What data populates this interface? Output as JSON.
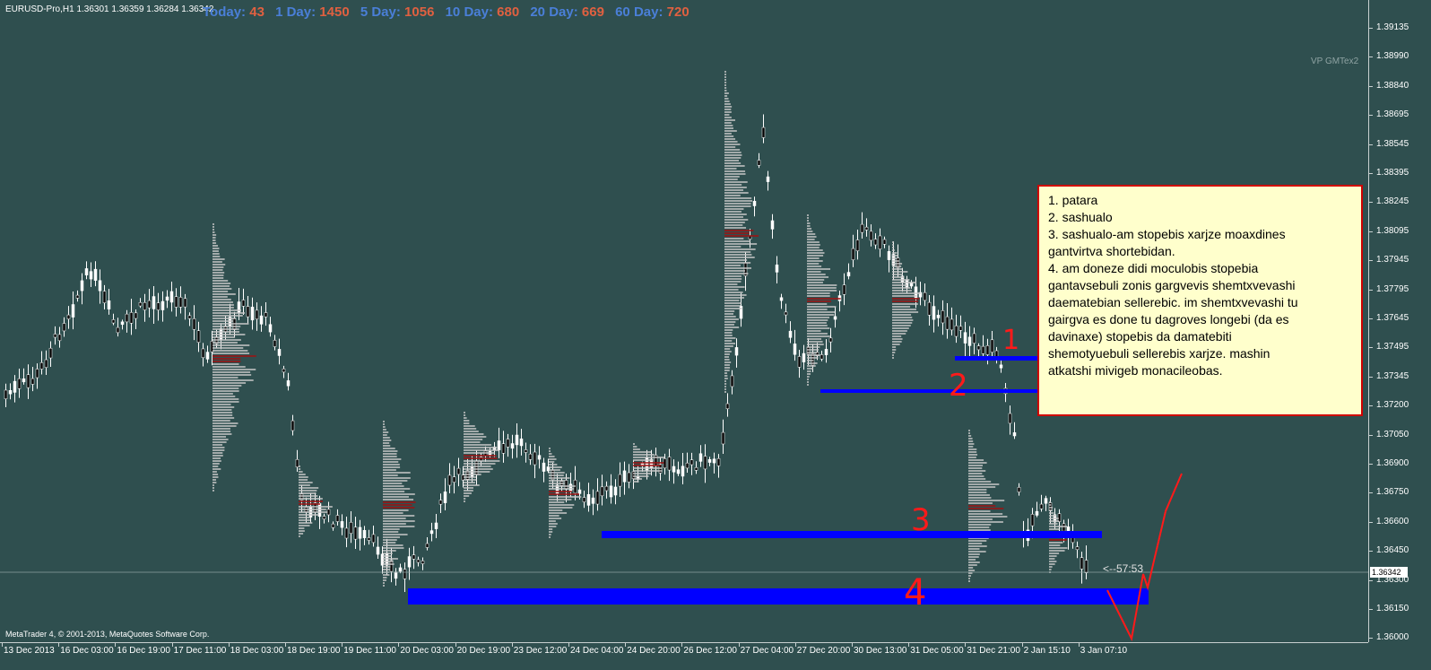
{
  "window": {
    "symbol_info": "EURUSD-Pro,H1  1.36301 1.36359 1.36284 1.36342",
    "copyright": "MetaTrader 4, © 2001-2013, MetaQuotes Software Corp.",
    "indicator_label": "VP GMTex2",
    "countdown": "<--57:53",
    "current_price": "1.36342"
  },
  "stats": [
    {
      "label": "Today:",
      "value": "43"
    },
    {
      "label": "1 Day:",
      "value": "1450"
    },
    {
      "label": "5 Day:",
      "value": "1056"
    },
    {
      "label": "10 Day:",
      "value": "680"
    },
    {
      "label": "20 Day:",
      "value": "669"
    },
    {
      "label": "60 Day:",
      "value": "720"
    }
  ],
  "price_axis": [
    "1.39135",
    "1.38990",
    "1.38840",
    "1.38695",
    "1.38545",
    "1.38395",
    "1.38245",
    "1.38095",
    "1.37945",
    "1.37795",
    "1.37645",
    "1.37495",
    "1.37345",
    "1.37200",
    "1.37050",
    "1.36900",
    "1.36750",
    "1.36600",
    "1.36450",
    "1.36300",
    "1.36150",
    "1.36000"
  ],
  "time_axis": [
    "13 Dec 2013",
    "16 Dec 03:00",
    "16 Dec 19:00",
    "17 Dec 11:00",
    "18 Dec 03:00",
    "18 Dec 19:00",
    "19 Dec 11:00",
    "20 Dec 03:00",
    "20 Dec 19:00",
    "23 Dec 12:00",
    "24 Dec 04:00",
    "24 Dec 20:00",
    "26 Dec 12:00",
    "27 Dec 04:00",
    "27 Dec 20:00",
    "30 Dec 13:00",
    "31 Dec 05:00",
    "31 Dec 21:00",
    "2 Jan 15:10",
    "3 Jan 07:10"
  ],
  "note_lines": [
    "1. patara",
    "2. sashualo",
    "3. sashualo-am stopebis xarjze moaxdines",
    "gantvirtva shortebidan.",
    "4. am doneze didi moculobis stopebia",
    "gantavsebuli zonis gargvevis shemtxvevashi",
    "daematebian sellerebic. im shemtxvevashi tu",
    "gairgva es done tu dagroves longebi (da es",
    "davinaxe) stopebis da damatebiti",
    "shemotyuebuli sellerebis xarjze. mashin",
    "atkatshi mivigeb monacileobas."
  ],
  "level_labels": [
    "1",
    "2",
    "3",
    "4"
  ],
  "colors": {
    "background": "#2F4F4F",
    "level_line": "#0000ff",
    "annotation": "#ff1a1a",
    "note_bg": "#ffffcc"
  }
}
